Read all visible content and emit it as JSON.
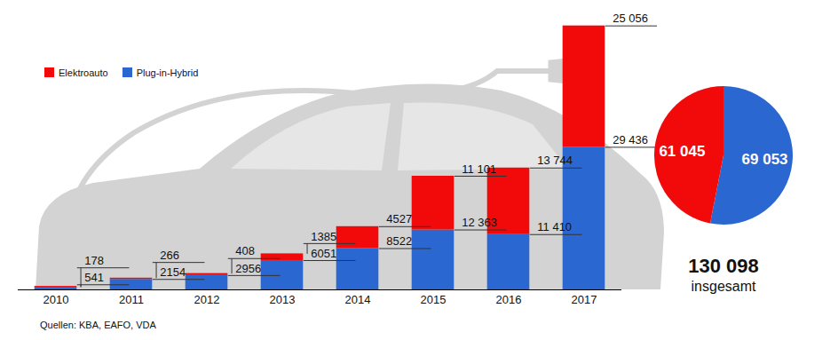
{
  "chart_data": [
    {
      "type": "bar",
      "stacked": true,
      "data_labels": true,
      "tick_labels": "x",
      "legend": "top-left",
      "categories": [
        "2010",
        "2011",
        "2012",
        "2013",
        "2014",
        "2015",
        "2016",
        "2017"
      ],
      "ylim": [
        0,
        57000
      ],
      "series": [
        {
          "name": "Plug-in-Hybrid",
          "color": "#2b67d0",
          "values": [
            541,
            2154,
            2956,
            6051,
            8522,
            12363,
            11410,
            29436
          ],
          "value_labels": [
            "541",
            "2154",
            "2956",
            "6051",
            "8522",
            "12 363",
            "11 410",
            "29 436"
          ]
        },
        {
          "name": "Elektroauto",
          "color": "#f20a0a",
          "values": [
            178,
            266,
            408,
            1385,
            4527,
            11101,
            13744,
            25056
          ],
          "value_labels": [
            "178",
            "266",
            "408",
            "1385",
            "4527",
            "11 101",
            "13 744",
            "25 056"
          ]
        }
      ],
      "caption": "Quellen: KBA, EAFO, VDA"
    },
    {
      "type": "pie",
      "data_labels": true,
      "categories": [
        "Plug-in-Hybrid",
        "Elektroauto"
      ],
      "values": [
        69053,
        61045
      ],
      "value_labels": [
        "69 053",
        "61 045"
      ],
      "colors": [
        "#2b67d0",
        "#f20a0a"
      ],
      "annotations": [
        "130 098",
        "insgesamt"
      ]
    }
  ]
}
